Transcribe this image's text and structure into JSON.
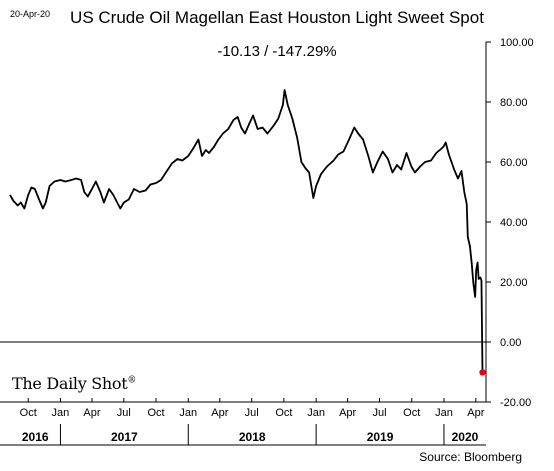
{
  "header": {
    "date": "20-Apr-20",
    "logo": "The Daily Shot",
    "logo_mark": "®",
    "source": "Source: Bloomberg"
  },
  "chart_data": {
    "type": "line",
    "title": "US Crude Oil Magellan East Houston Light Sweet Spot",
    "subtitle": "-10.13  /  -147.29%",
    "xlabel": "",
    "ylabel": "",
    "ylim": [
      -20,
      100
    ],
    "yticks": [
      100,
      80,
      60,
      40,
      20,
      0,
      -20
    ],
    "ytick_labels": [
      "100.00",
      "80.00",
      "60.00",
      "40.00",
      "20.00",
      "0.00",
      "-20.00"
    ],
    "y_axis_side": "right",
    "xlim": [
      "2016-08-10",
      "2020-04-30"
    ],
    "month_ticks": [
      {
        "label": "Oct",
        "date": "2016-10-01"
      },
      {
        "label": "Jan",
        "date": "2017-01-01"
      },
      {
        "label": "Apr",
        "date": "2017-04-01"
      },
      {
        "label": "Jul",
        "date": "2017-07-01"
      },
      {
        "label": "Oct",
        "date": "2017-10-01"
      },
      {
        "label": "Jan",
        "date": "2018-01-01"
      },
      {
        "label": "Apr",
        "date": "2018-04-01"
      },
      {
        "label": "Jul",
        "date": "2018-07-01"
      },
      {
        "label": "Oct",
        "date": "2018-10-01"
      },
      {
        "label": "Jan",
        "date": "2019-01-01"
      },
      {
        "label": "Apr",
        "date": "2019-04-01"
      },
      {
        "label": "Jul",
        "date": "2019-07-01"
      },
      {
        "label": "Oct",
        "date": "2019-10-01"
      },
      {
        "label": "Jan",
        "date": "2020-01-01"
      },
      {
        "label": "Apr",
        "date": "2020-04-01"
      }
    ],
    "years": [
      {
        "label": "2016",
        "from": "2016-08-10",
        "to": "2017-01-01"
      },
      {
        "label": "2017",
        "from": "2017-01-01",
        "to": "2018-01-01"
      },
      {
        "label": "2018",
        "from": "2018-01-01",
        "to": "2019-01-01"
      },
      {
        "label": "2019",
        "from": "2019-01-01",
        "to": "2020-01-01"
      },
      {
        "label": "2020",
        "from": "2020-01-01",
        "to": "2020-04-30"
      }
    ],
    "reference_line": 0,
    "grid": false,
    "series": [
      {
        "color": "#000000",
        "points": [
          [
            "2016-08-10",
            49
          ],
          [
            "2016-08-20",
            47
          ],
          [
            "2016-09-01",
            45.5
          ],
          [
            "2016-09-10",
            46.5
          ],
          [
            "2016-09-20",
            44.5
          ],
          [
            "2016-10-01",
            49
          ],
          [
            "2016-10-10",
            51.5
          ],
          [
            "2016-10-20",
            51
          ],
          [
            "2016-11-01",
            47.5
          ],
          [
            "2016-11-12",
            44.5
          ],
          [
            "2016-11-20",
            46.5
          ],
          [
            "2016-12-01",
            52
          ],
          [
            "2016-12-15",
            53.5
          ],
          [
            "2017-01-01",
            54
          ],
          [
            "2017-01-15",
            53.5
          ],
          [
            "2017-02-01",
            54
          ],
          [
            "2017-02-15",
            54.5
          ],
          [
            "2017-03-01",
            54
          ],
          [
            "2017-03-10",
            50
          ],
          [
            "2017-03-20",
            48.5
          ],
          [
            "2017-04-01",
            51
          ],
          [
            "2017-04-12",
            53.5
          ],
          [
            "2017-04-25",
            50
          ],
          [
            "2017-05-05",
            46.5
          ],
          [
            "2017-05-20",
            51
          ],
          [
            "2017-06-01",
            49
          ],
          [
            "2017-06-12",
            46.5
          ],
          [
            "2017-06-21",
            44.5
          ],
          [
            "2017-07-01",
            46.5
          ],
          [
            "2017-07-15",
            47.5
          ],
          [
            "2017-07-30",
            51
          ],
          [
            "2017-08-15",
            50
          ],
          [
            "2017-09-01",
            50.5
          ],
          [
            "2017-09-15",
            52.5
          ],
          [
            "2017-10-01",
            53
          ],
          [
            "2017-10-15",
            54
          ],
          [
            "2017-11-01",
            57
          ],
          [
            "2017-11-15",
            59.5
          ],
          [
            "2017-12-01",
            61
          ],
          [
            "2017-12-15",
            60.5
          ],
          [
            "2018-01-01",
            62
          ],
          [
            "2018-01-15",
            64.5
          ],
          [
            "2018-01-30",
            67.5
          ],
          [
            "2018-02-09",
            62
          ],
          [
            "2018-02-20",
            64
          ],
          [
            "2018-03-01",
            63
          ],
          [
            "2018-03-15",
            65
          ],
          [
            "2018-03-28",
            67.5
          ],
          [
            "2018-04-10",
            69.5
          ],
          [
            "2018-04-25",
            71
          ],
          [
            "2018-05-10",
            74
          ],
          [
            "2018-05-22",
            75
          ],
          [
            "2018-06-01",
            71.5
          ],
          [
            "2018-06-12",
            69.5
          ],
          [
            "2018-06-25",
            73
          ],
          [
            "2018-07-05",
            75.5
          ],
          [
            "2018-07-18",
            71
          ],
          [
            "2018-08-01",
            71.5
          ],
          [
            "2018-08-15",
            69.5
          ],
          [
            "2018-09-01",
            72
          ],
          [
            "2018-09-15",
            74.5
          ],
          [
            "2018-09-28",
            79
          ],
          [
            "2018-10-03",
            84
          ],
          [
            "2018-10-12",
            79
          ],
          [
            "2018-10-25",
            74.5
          ],
          [
            "2018-11-08",
            68
          ],
          [
            "2018-11-20",
            60
          ],
          [
            "2018-12-01",
            58
          ],
          [
            "2018-12-12",
            56.5
          ],
          [
            "2018-12-24",
            48
          ],
          [
            "2019-01-01",
            52
          ],
          [
            "2019-01-15",
            56
          ],
          [
            "2019-02-01",
            58.5
          ],
          [
            "2019-02-20",
            60.5
          ],
          [
            "2019-03-05",
            62.5
          ],
          [
            "2019-03-20",
            63.5
          ],
          [
            "2019-04-05",
            67.5
          ],
          [
            "2019-04-20",
            71.5
          ],
          [
            "2019-05-01",
            69.5
          ],
          [
            "2019-05-15",
            67.5
          ],
          [
            "2019-05-30",
            62
          ],
          [
            "2019-06-12",
            56.5
          ],
          [
            "2019-06-25",
            60
          ],
          [
            "2019-07-10",
            63.5
          ],
          [
            "2019-07-25",
            61
          ],
          [
            "2019-08-07",
            56.5
          ],
          [
            "2019-08-20",
            59
          ],
          [
            "2019-09-01",
            57.5
          ],
          [
            "2019-09-16",
            63
          ],
          [
            "2019-09-30",
            58.5
          ],
          [
            "2019-10-10",
            56.5
          ],
          [
            "2019-10-25",
            58.5
          ],
          [
            "2019-11-08",
            60
          ],
          [
            "2019-11-25",
            60.5
          ],
          [
            "2019-12-10",
            63
          ],
          [
            "2019-12-30",
            65
          ],
          [
            "2020-01-06",
            66.5
          ],
          [
            "2020-01-15",
            62.5
          ],
          [
            "2020-01-30",
            57.5
          ],
          [
            "2020-02-10",
            54.5
          ],
          [
            "2020-02-20",
            57
          ],
          [
            "2020-02-28",
            50
          ],
          [
            "2020-03-06",
            46
          ],
          [
            "2020-03-09",
            35
          ],
          [
            "2020-03-15",
            32
          ],
          [
            "2020-03-20",
            26.5
          ],
          [
            "2020-03-25",
            19.5
          ],
          [
            "2020-03-30",
            15
          ],
          [
            "2020-04-02",
            24
          ],
          [
            "2020-04-06",
            26.5
          ],
          [
            "2020-04-09",
            21
          ],
          [
            "2020-04-14",
            21.5
          ],
          [
            "2020-04-17",
            20.5
          ],
          [
            "2020-04-20",
            -10.13
          ]
        ]
      }
    ],
    "end_marker": {
      "date": "2020-04-20",
      "value": -10.13,
      "color": "#e8000b"
    }
  }
}
